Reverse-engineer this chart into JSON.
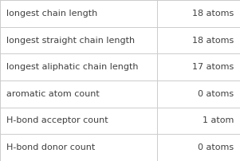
{
  "rows": [
    {
      "label": "longest chain length",
      "value": "18 atoms"
    },
    {
      "label": "longest straight chain length",
      "value": "18 atoms"
    },
    {
      "label": "longest aliphatic chain length",
      "value": "17 atoms"
    },
    {
      "label": "aromatic atom count",
      "value": "0 atoms"
    },
    {
      "label": "H-bond acceptor count",
      "value": "1 atom"
    },
    {
      "label": "H-bond donor count",
      "value": "0 atoms"
    }
  ],
  "col_split": 0.655,
  "background_color": "#ffffff",
  "border_color": "#cccccc",
  "text_color": "#404040",
  "label_fontsize": 8.0,
  "value_fontsize": 8.0
}
